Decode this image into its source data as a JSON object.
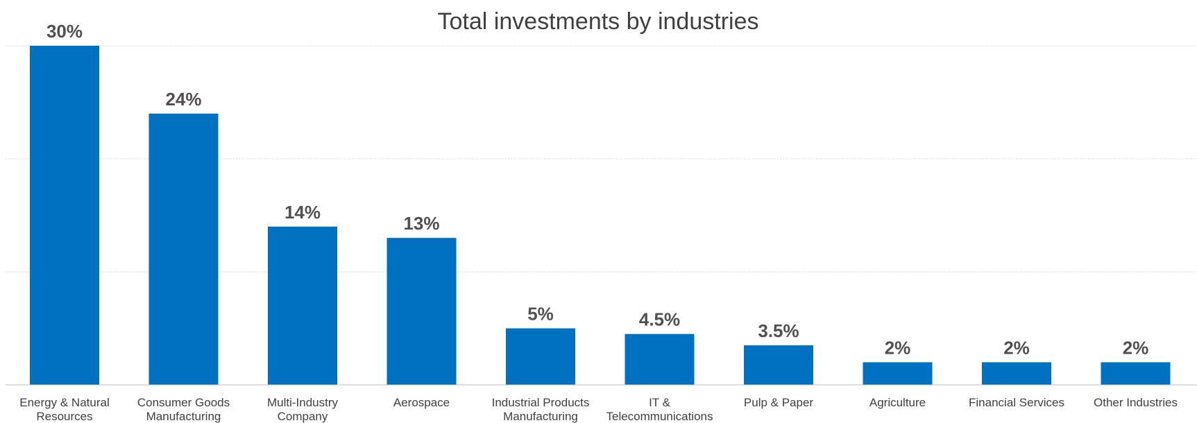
{
  "chart_data": {
    "type": "bar",
    "title": "Total investments by industries",
    "xlabel": "",
    "ylabel": "",
    "ylim": [
      0,
      30
    ],
    "grid": true,
    "bar_color": "#0070C0",
    "categories": [
      "Energy & Natural Resources",
      "Consumer Goods Manufacturing",
      "Multi-Industry Company",
      "Aerospace",
      "Industrial Products Manufacturing",
      "IT & Telecommunications",
      "Pulp & Paper",
      "Agriculture",
      "Financial Services",
      "Other Industries"
    ],
    "category_label_lines": [
      [
        "Energy & Natural",
        "Resources"
      ],
      [
        "Consumer Goods",
        "Manufacturing"
      ],
      [
        "Multi-Industry",
        "Company"
      ],
      [
        "Aerospace"
      ],
      [
        "Industrial Products",
        "Manufacturing"
      ],
      [
        "IT &",
        "Telecommunications"
      ],
      [
        "Pulp & Paper"
      ],
      [
        "Agriculture"
      ],
      [
        "Financial Services"
      ],
      [
        "Other Industries"
      ]
    ],
    "values": [
      30,
      24,
      14,
      13,
      5,
      4.5,
      3.5,
      2,
      2,
      2
    ],
    "data_labels": [
      "30%",
      "24%",
      "14%",
      "13%",
      "5%",
      "4.5%",
      "3.5%",
      "2%",
      "2%",
      "2%"
    ]
  }
}
